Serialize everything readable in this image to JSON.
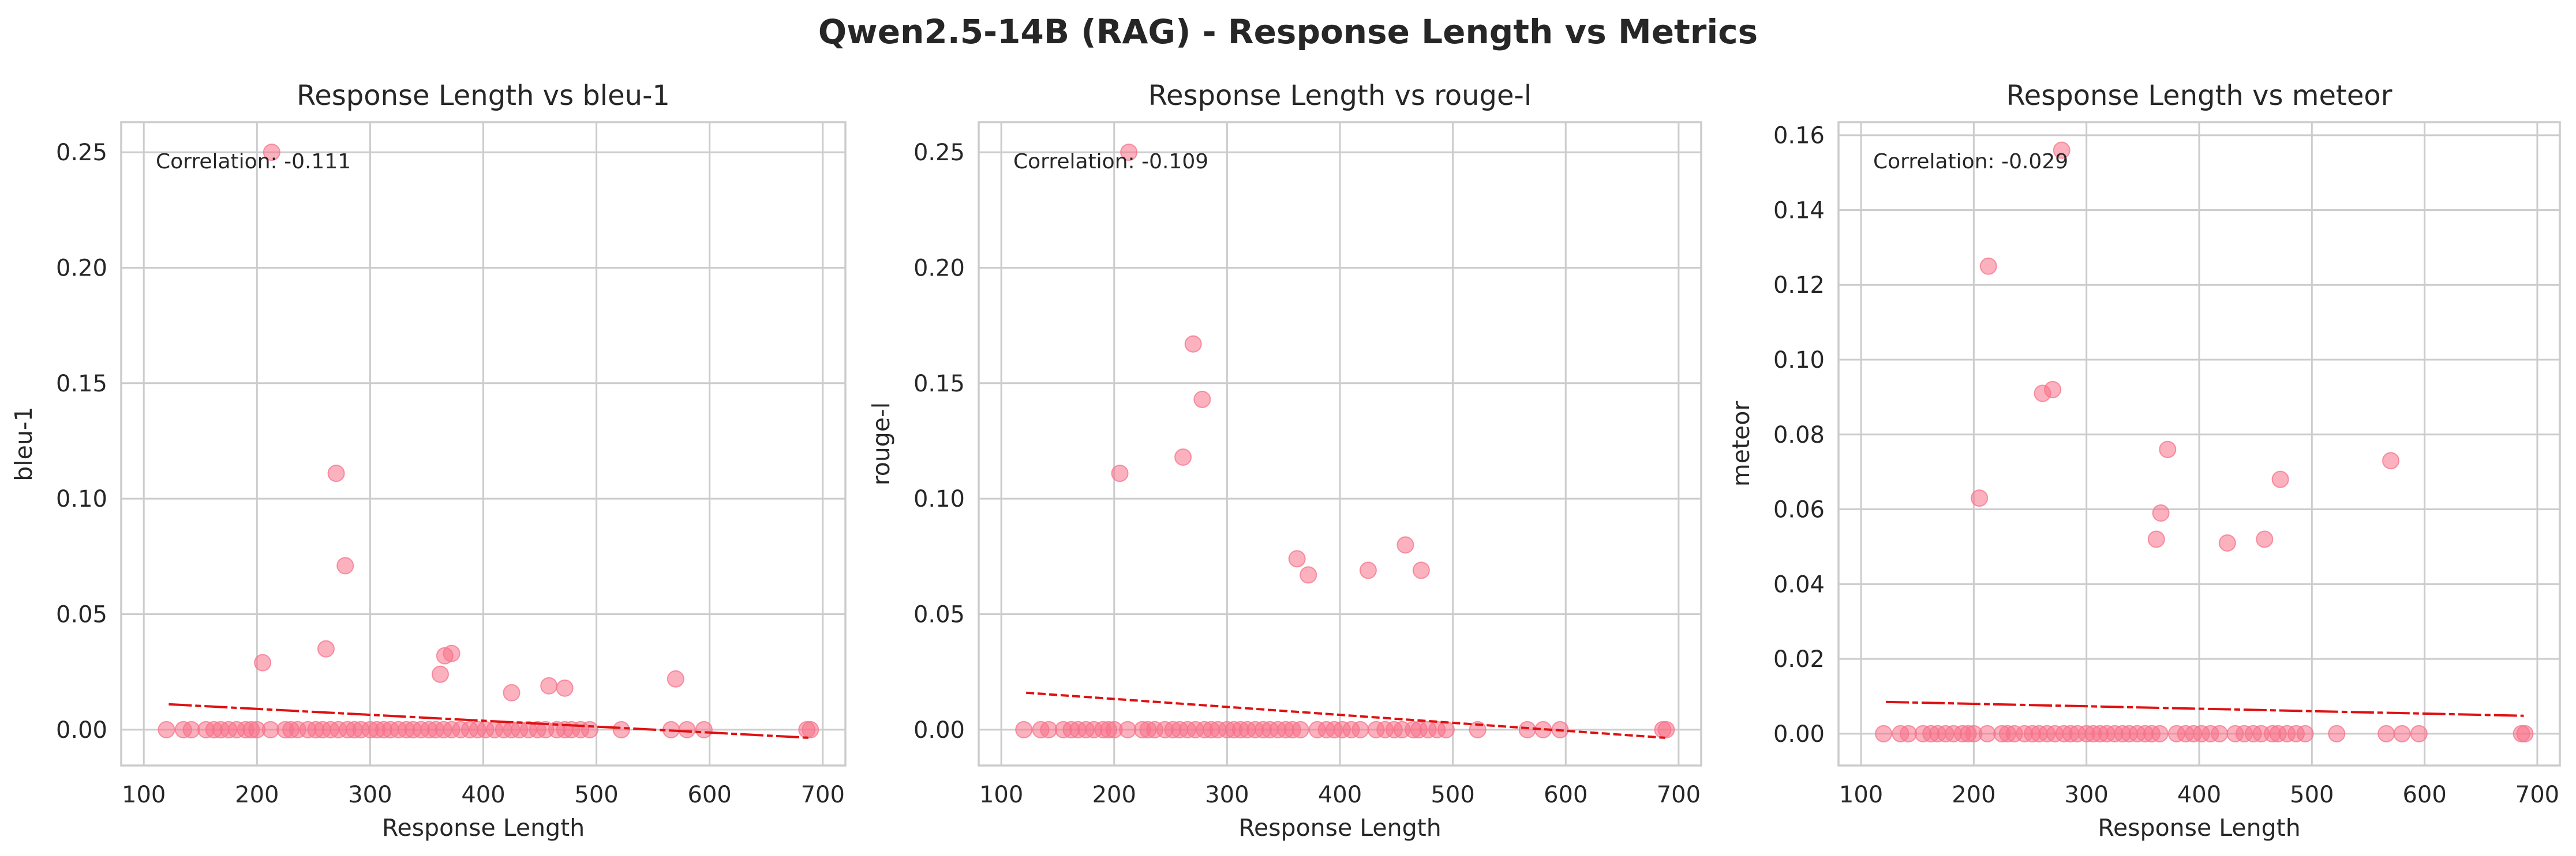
{
  "figure": {
    "title": "Qwen2.5-14B (RAG) - Response Length vs Metrics",
    "colors": {
      "points": "#f77189",
      "trend": "#e01010",
      "grid": "#cccccc",
      "axes": "#cccccc",
      "text": "#262626"
    }
  },
  "chart_data": [
    {
      "type": "scatter",
      "title": "Response Length vs bleu-1",
      "xlabel": "Response Length",
      "ylabel": "bleu-1",
      "xlim": [
        80,
        720
      ],
      "ylim": [
        -0.0155,
        0.263
      ],
      "xticks": [
        100,
        200,
        300,
        400,
        500,
        600,
        700
      ],
      "yticks": [
        0.0,
        0.05,
        0.1,
        0.15,
        0.2,
        0.25
      ],
      "ytick_labels": [
        "0.00",
        "0.05",
        "0.10",
        "0.15",
        "0.20",
        "0.25"
      ],
      "annotation": "Correlation: -0.111",
      "grid": true,
      "trend_line": {
        "x": [
          122,
          688
        ],
        "y": [
          0.011,
          -0.0035
        ]
      },
      "points": [
        [
          213,
          0.25
        ],
        [
          270,
          0.111
        ],
        [
          278,
          0.071
        ],
        [
          261,
          0.035
        ],
        [
          205,
          0.029
        ],
        [
          372,
          0.033
        ],
        [
          366,
          0.032
        ],
        [
          362,
          0.024
        ],
        [
          570,
          0.022
        ],
        [
          458,
          0.019
        ],
        [
          472,
          0.018
        ],
        [
          425,
          0.016
        ],
        [
          120,
          0
        ],
        [
          135,
          0
        ],
        [
          142,
          0
        ],
        [
          155,
          0
        ],
        [
          162,
          0
        ],
        [
          168,
          0
        ],
        [
          175,
          0
        ],
        [
          182,
          0
        ],
        [
          190,
          0
        ],
        [
          195,
          0
        ],
        [
          200,
          0
        ],
        [
          212,
          0
        ],
        [
          225,
          0
        ],
        [
          230,
          0
        ],
        [
          236,
          0
        ],
        [
          245,
          0
        ],
        [
          252,
          0
        ],
        [
          258,
          0
        ],
        [
          265,
          0
        ],
        [
          272,
          0
        ],
        [
          280,
          0
        ],
        [
          286,
          0
        ],
        [
          292,
          0
        ],
        [
          300,
          0
        ],
        [
          306,
          0
        ],
        [
          312,
          0
        ],
        [
          318,
          0
        ],
        [
          325,
          0
        ],
        [
          332,
          0
        ],
        [
          338,
          0
        ],
        [
          345,
          0
        ],
        [
          352,
          0
        ],
        [
          358,
          0
        ],
        [
          365,
          0
        ],
        [
          372,
          0
        ],
        [
          380,
          0
        ],
        [
          388,
          0
        ],
        [
          395,
          0
        ],
        [
          402,
          0
        ],
        [
          410,
          0
        ],
        [
          418,
          0
        ],
        [
          425,
          0
        ],
        [
          432,
          0
        ],
        [
          440,
          0
        ],
        [
          448,
          0
        ],
        [
          455,
          0
        ],
        [
          465,
          0
        ],
        [
          472,
          0
        ],
        [
          478,
          0
        ],
        [
          486,
          0
        ],
        [
          494,
          0
        ],
        [
          522,
          0
        ],
        [
          566,
          0
        ],
        [
          580,
          0
        ],
        [
          595,
          0
        ],
        [
          686,
          0
        ],
        [
          689,
          0
        ]
      ]
    },
    {
      "type": "scatter",
      "title": "Response Length vs rouge-l",
      "xlabel": "Response Length",
      "ylabel": "rouge-l",
      "xlim": [
        80,
        720
      ],
      "ylim": [
        -0.0155,
        0.263
      ],
      "xticks": [
        100,
        200,
        300,
        400,
        500,
        600,
        700
      ],
      "yticks": [
        0.0,
        0.05,
        0.1,
        0.15,
        0.2,
        0.25
      ],
      "ytick_labels": [
        "0.00",
        "0.05",
        "0.10",
        "0.15",
        "0.20",
        "0.25"
      ],
      "annotation": "Correlation: -0.109",
      "grid": true,
      "trend_line": {
        "x": [
          122,
          688
        ],
        "y": [
          0.016,
          -0.0035
        ]
      },
      "points": [
        [
          213,
          0.25
        ],
        [
          270,
          0.167
        ],
        [
          278,
          0.143
        ],
        [
          261,
          0.118
        ],
        [
          205,
          0.111
        ],
        [
          362,
          0.074
        ],
        [
          372,
          0.067
        ],
        [
          458,
          0.08
        ],
        [
          425,
          0.069
        ],
        [
          472,
          0.069
        ],
        [
          120,
          0
        ],
        [
          135,
          0
        ],
        [
          142,
          0
        ],
        [
          155,
          0
        ],
        [
          162,
          0
        ],
        [
          168,
          0
        ],
        [
          175,
          0
        ],
        [
          182,
          0
        ],
        [
          190,
          0
        ],
        [
          195,
          0
        ],
        [
          200,
          0
        ],
        [
          212,
          0
        ],
        [
          225,
          0
        ],
        [
          230,
          0
        ],
        [
          236,
          0
        ],
        [
          245,
          0
        ],
        [
          252,
          0
        ],
        [
          258,
          0
        ],
        [
          265,
          0
        ],
        [
          272,
          0
        ],
        [
          280,
          0
        ],
        [
          286,
          0
        ],
        [
          292,
          0
        ],
        [
          300,
          0
        ],
        [
          306,
          0
        ],
        [
          312,
          0
        ],
        [
          318,
          0
        ],
        [
          325,
          0
        ],
        [
          332,
          0
        ],
        [
          338,
          0
        ],
        [
          345,
          0
        ],
        [
          352,
          0
        ],
        [
          358,
          0
        ],
        [
          365,
          0
        ],
        [
          380,
          0
        ],
        [
          388,
          0
        ],
        [
          395,
          0
        ],
        [
          402,
          0
        ],
        [
          410,
          0
        ],
        [
          418,
          0
        ],
        [
          432,
          0
        ],
        [
          440,
          0
        ],
        [
          448,
          0
        ],
        [
          455,
          0
        ],
        [
          465,
          0
        ],
        [
          470,
          0
        ],
        [
          478,
          0
        ],
        [
          486,
          0
        ],
        [
          494,
          0
        ],
        [
          522,
          0
        ],
        [
          566,
          0
        ],
        [
          580,
          0
        ],
        [
          595,
          0
        ],
        [
          686,
          0
        ],
        [
          689,
          0
        ]
      ]
    },
    {
      "type": "scatter",
      "title": "Response Length vs meteor",
      "xlabel": "Response Length",
      "ylabel": "meteor",
      "xlim": [
        80,
        720
      ],
      "ylim": [
        -0.0085,
        0.1635
      ],
      "xticks": [
        100,
        200,
        300,
        400,
        500,
        600,
        700
      ],
      "yticks": [
        0.0,
        0.02,
        0.04,
        0.06,
        0.08,
        0.1,
        0.12,
        0.14,
        0.16
      ],
      "ytick_labels": [
        "0.00",
        "0.02",
        "0.04",
        "0.06",
        "0.08",
        "0.10",
        "0.12",
        "0.14",
        "0.16"
      ],
      "annotation": "Correlation: -0.029",
      "grid": true,
      "trend_line": {
        "x": [
          122,
          688
        ],
        "y": [
          0.0085,
          0.0048
        ]
      },
      "points": [
        [
          278,
          0.156
        ],
        [
          213,
          0.125
        ],
        [
          270,
          0.092
        ],
        [
          261,
          0.091
        ],
        [
          205,
          0.063
        ],
        [
          372,
          0.076
        ],
        [
          366,
          0.059
        ],
        [
          362,
          0.052
        ],
        [
          425,
          0.051
        ],
        [
          458,
          0.052
        ],
        [
          472,
          0.068
        ],
        [
          570,
          0.073
        ],
        [
          120,
          0
        ],
        [
          135,
          0
        ],
        [
          142,
          0
        ],
        [
          155,
          0
        ],
        [
          162,
          0
        ],
        [
          168,
          0
        ],
        [
          175,
          0
        ],
        [
          182,
          0
        ],
        [
          190,
          0
        ],
        [
          195,
          0
        ],
        [
          200,
          0
        ],
        [
          212,
          0
        ],
        [
          225,
          0
        ],
        [
          230,
          0
        ],
        [
          236,
          0
        ],
        [
          245,
          0
        ],
        [
          252,
          0
        ],
        [
          258,
          0
        ],
        [
          265,
          0
        ],
        [
          272,
          0
        ],
        [
          280,
          0
        ],
        [
          286,
          0
        ],
        [
          292,
          0
        ],
        [
          300,
          0
        ],
        [
          306,
          0
        ],
        [
          312,
          0
        ],
        [
          318,
          0
        ],
        [
          325,
          0
        ],
        [
          332,
          0
        ],
        [
          338,
          0
        ],
        [
          345,
          0
        ],
        [
          352,
          0
        ],
        [
          358,
          0
        ],
        [
          365,
          0
        ],
        [
          380,
          0
        ],
        [
          388,
          0
        ],
        [
          395,
          0
        ],
        [
          402,
          0
        ],
        [
          410,
          0
        ],
        [
          418,
          0
        ],
        [
          432,
          0
        ],
        [
          440,
          0
        ],
        [
          448,
          0
        ],
        [
          455,
          0
        ],
        [
          465,
          0
        ],
        [
          470,
          0
        ],
        [
          478,
          0
        ],
        [
          486,
          0
        ],
        [
          494,
          0
        ],
        [
          522,
          0
        ],
        [
          566,
          0
        ],
        [
          580,
          0
        ],
        [
          595,
          0
        ],
        [
          686,
          0
        ],
        [
          689,
          0
        ]
      ]
    }
  ]
}
